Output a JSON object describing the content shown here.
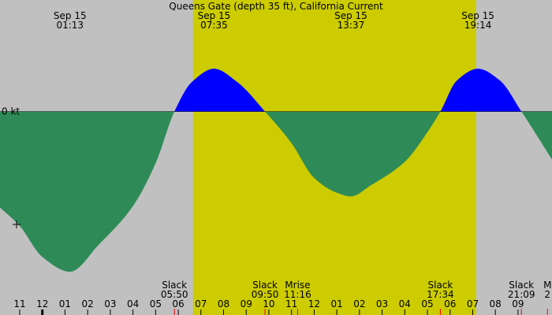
{
  "title": "Queens Gate (depth 35 ft), California Current",
  "zero_label": "0 kt",
  "colors": {
    "night_bg": "#c0c0c0",
    "day_bg": "#cccc00",
    "flood": "#0000ff",
    "ebb": "#2e8b57",
    "tick_major": "#000000",
    "tick_event": "#ff0000"
  },
  "chart_data": {
    "type": "area",
    "title": "Queens Gate (depth 35 ft), California Current",
    "ylabel": "0 kt",
    "x_axis_unit": "hour",
    "x_range": [
      -1.87,
      22.5
    ],
    "y_range": [
      -2.5,
      1.5
    ],
    "daylight": [
      {
        "start": 6.65,
        "end": 19.15
      }
    ],
    "hour_ticks": [
      {
        "h": -1,
        "label": "11"
      },
      {
        "h": 0,
        "label": "12"
      },
      {
        "h": 1,
        "label": "01"
      },
      {
        "h": 2,
        "label": "02"
      },
      {
        "h": 3,
        "label": "03"
      },
      {
        "h": 4,
        "label": "04"
      },
      {
        "h": 5,
        "label": "05"
      },
      {
        "h": 6,
        "label": "06"
      },
      {
        "h": 7,
        "label": "07"
      },
      {
        "h": 8,
        "label": "08"
      },
      {
        "h": 9,
        "label": "09"
      },
      {
        "h": 10,
        "label": "10"
      },
      {
        "h": 11,
        "label": "11"
      },
      {
        "h": 12,
        "label": "12"
      },
      {
        "h": 13,
        "label": "01"
      },
      {
        "h": 14,
        "label": "02"
      },
      {
        "h": 15,
        "label": "03"
      },
      {
        "h": 16,
        "label": "04"
      },
      {
        "h": 17,
        "label": "05"
      },
      {
        "h": 18,
        "label": "06"
      },
      {
        "h": 19,
        "label": "07"
      },
      {
        "h": 20,
        "label": "08"
      },
      {
        "h": 21,
        "label": "09"
      }
    ],
    "peaks": [
      {
        "date": "Sep 15",
        "time": "01:13",
        "h": 1.22,
        "value": -2.17
      },
      {
        "date": "Sep 15",
        "time": "07:35",
        "h": 7.58,
        "value": 0.58
      },
      {
        "date": "Sep 15",
        "time": "13:37",
        "h": 13.62,
        "value": -1.15
      },
      {
        "date": "Sep 15",
        "time": "19:14",
        "h": 19.23,
        "value": 0.58
      }
    ],
    "events": [
      {
        "label": "Slack",
        "time": "05:50",
        "h": 5.83
      },
      {
        "label": "Slack",
        "time": "09:50",
        "h": 9.83
      },
      {
        "label": "Mrise",
        "time": "11:16",
        "h": 11.27
      },
      {
        "label": "Slack",
        "time": "17:34",
        "h": 17.57
      },
      {
        "label": "Slack",
        "time": "21:09",
        "h": 21.15
      },
      {
        "label": "M",
        "time": "2",
        "h": 22.3
      }
    ],
    "curve": [
      {
        "h": -1.87,
        "v": -1.3
      },
      {
        "h": -1.0,
        "v": -1.55
      },
      {
        "h": 0.0,
        "v": -1.97
      },
      {
        "h": 1.22,
        "v": -2.17
      },
      {
        "h": 2.5,
        "v": -1.8
      },
      {
        "h": 4.0,
        "v": -1.28
      },
      {
        "h": 5.0,
        "v": -0.7
      },
      {
        "h": 5.83,
        "v": 0.0
      },
      {
        "h": 6.6,
        "v": 0.4
      },
      {
        "h": 7.58,
        "v": 0.58
      },
      {
        "h": 8.6,
        "v": 0.4
      },
      {
        "h": 9.83,
        "v": 0.0
      },
      {
        "h": 11.0,
        "v": -0.43
      },
      {
        "h": 12.0,
        "v": -0.9
      },
      {
        "h": 13.0,
        "v": -1.1
      },
      {
        "h": 13.62,
        "v": -1.15
      },
      {
        "h": 14.5,
        "v": -1.0
      },
      {
        "h": 16.0,
        "v": -0.68
      },
      {
        "h": 17.0,
        "v": -0.28
      },
      {
        "h": 17.57,
        "v": 0.0
      },
      {
        "h": 18.3,
        "v": 0.42
      },
      {
        "h": 19.23,
        "v": 0.58
      },
      {
        "h": 20.2,
        "v": 0.42
      },
      {
        "h": 21.15,
        "v": 0.0
      },
      {
        "h": 22.5,
        "v": -0.65
      }
    ]
  }
}
